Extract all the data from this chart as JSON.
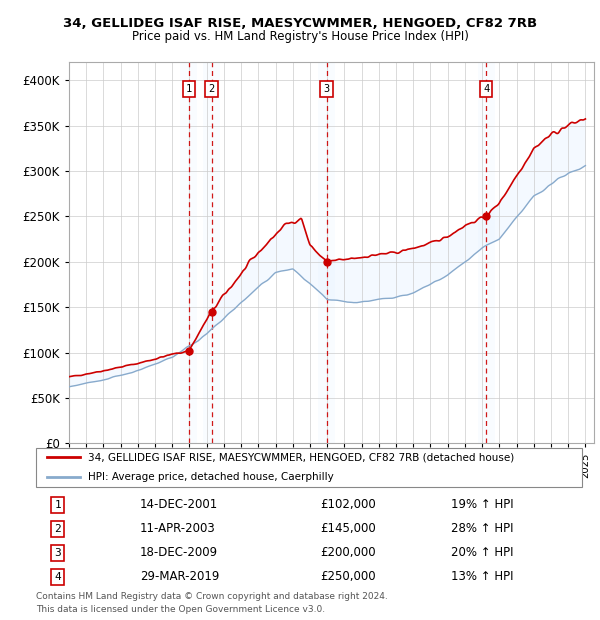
{
  "title1": "34, GELLIDEG ISAF RISE, MAESYCWMMER, HENGOED, CF82 7RB",
  "title2": "Price paid vs. HM Land Registry's House Price Index (HPI)",
  "ylim": [
    0,
    420000
  ],
  "yticks": [
    0,
    50000,
    100000,
    150000,
    200000,
    250000,
    300000,
    350000,
    400000
  ],
  "ytick_labels": [
    "£0",
    "£50K",
    "£100K",
    "£150K",
    "£200K",
    "£250K",
    "£300K",
    "£350K",
    "£400K"
  ],
  "legend_entries": [
    "34, GELLIDEG ISAF RISE, MAESYCWMMER, HENGOED, CF82 7RB (detached house)",
    "HPI: Average price, detached house, Caerphilly"
  ],
  "legend_colors": [
    "#cc0000",
    "#6699cc"
  ],
  "transactions": [
    {
      "label": "1",
      "date": "14-DEC-2001",
      "price": 102000,
      "pct": "19%",
      "dir": "↑",
      "x_year": 2001.96
    },
    {
      "label": "2",
      "date": "11-APR-2003",
      "price": 145000,
      "pct": "28%",
      "dir": "↑",
      "x_year": 2003.28
    },
    {
      "label": "3",
      "date": "18-DEC-2009",
      "price": 200000,
      "pct": "20%",
      "dir": "↑",
      "x_year": 2009.96
    },
    {
      "label": "4",
      "date": "29-MAR-2019",
      "price": 250000,
      "pct": "13%",
      "dir": "↑",
      "x_year": 2019.25
    }
  ],
  "footer1": "Contains HM Land Registry data © Crown copyright and database right 2024.",
  "footer2": "This data is licensed under the Open Government Licence v3.0.",
  "bg_color": "#ffffff",
  "grid_color": "#cccccc",
  "band_color": "#ddeeff",
  "red_line_color": "#cc0000",
  "blue_line_color": "#88aacc",
  "xlim_left": 1995.0,
  "xlim_right": 2025.5
}
